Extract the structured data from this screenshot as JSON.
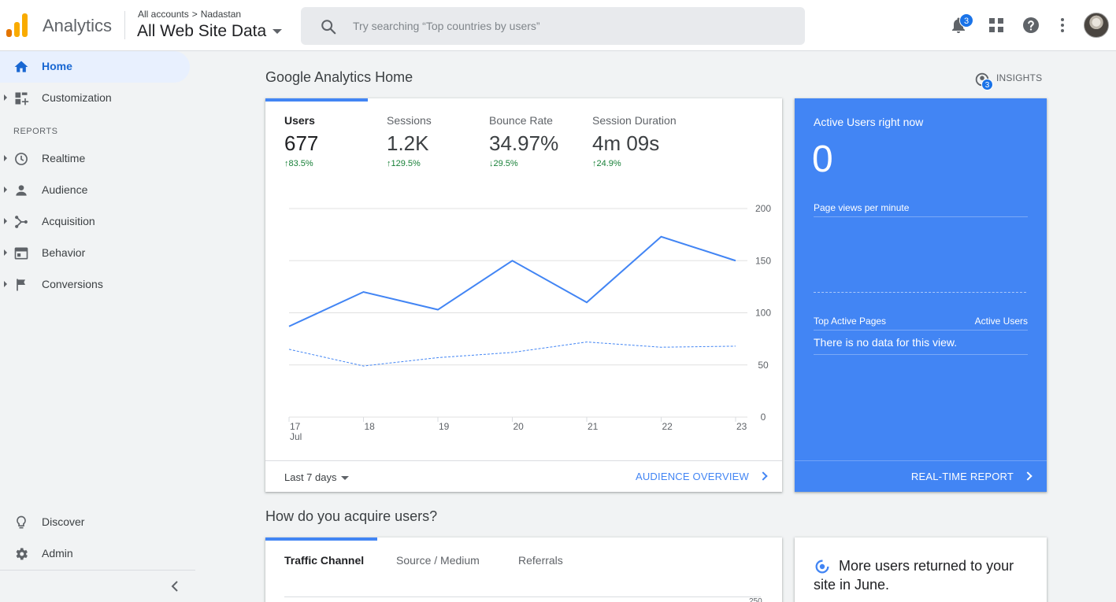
{
  "header": {
    "app_name": "Analytics",
    "breadcrumb_account": "All accounts",
    "breadcrumb_separator": ">",
    "breadcrumb_property": "Nadastan",
    "view_name": "All Web Site Data",
    "search_placeholder": "Try searching “Top countries by users”",
    "notification_count": "3",
    "brand_colors": [
      "#f9ab00",
      "#e37400"
    ]
  },
  "sidebar": {
    "home": "Home",
    "customization": "Customization",
    "reports_label": "REPORTS",
    "items": [
      {
        "label": "Realtime",
        "icon": "clock-icon"
      },
      {
        "label": "Audience",
        "icon": "person-icon"
      },
      {
        "label": "Acquisition",
        "icon": "acquisition-icon"
      },
      {
        "label": "Behavior",
        "icon": "behavior-icon"
      },
      {
        "label": "Conversions",
        "icon": "flag-icon"
      }
    ],
    "discover": "Discover",
    "admin": "Admin"
  },
  "main": {
    "title": "Google Analytics Home",
    "insights_label": "INSIGHTS",
    "insights_count": "3",
    "metrics": [
      {
        "label": "Users",
        "value": "677",
        "delta": "83.5%",
        "direction": "up"
      },
      {
        "label": "Sessions",
        "value": "1.2K",
        "delta": "129.5%",
        "direction": "up"
      },
      {
        "label": "Bounce Rate",
        "value": "34.97%",
        "delta": "29.5%",
        "direction": "down"
      },
      {
        "label": "Session Duration",
        "value": "4m 09s",
        "delta": "24.9%",
        "direction": "up"
      }
    ],
    "date_range": "Last 7 days",
    "audience_link": "AUDIENCE OVERVIEW",
    "acquire_title": "How do you acquire users?",
    "acquire_tabs": [
      "Traffic Channel",
      "Source / Medium",
      "Referrals"
    ],
    "acquire_tick": "250"
  },
  "realtime": {
    "title": "Active Users right now",
    "value": "0",
    "subtitle": "Page views per minute",
    "col_pages": "Top Active Pages",
    "col_users": "Active Users",
    "empty": "There is no data for this view.",
    "link": "REAL-TIME REPORT",
    "color": "#4285f4"
  },
  "insight_card": {
    "text": "More users returned to your site in June."
  },
  "chart_data": {
    "type": "line",
    "x": [
      "17",
      "18",
      "19",
      "20",
      "21",
      "22",
      "23"
    ],
    "x_sublabel": "Jul",
    "y_ticks": [
      "200",
      "150",
      "100",
      "50",
      "0"
    ],
    "ylim": [
      0,
      200
    ],
    "series": [
      {
        "values": [
          87,
          120,
          103,
          150,
          110,
          173,
          150
        ],
        "color": "#4285f4",
        "style": "solid"
      },
      {
        "values": [
          65,
          49,
          57,
          62,
          72,
          67,
          68
        ],
        "color": "#4285f4",
        "style": "dashed"
      }
    ],
    "grid": true
  }
}
